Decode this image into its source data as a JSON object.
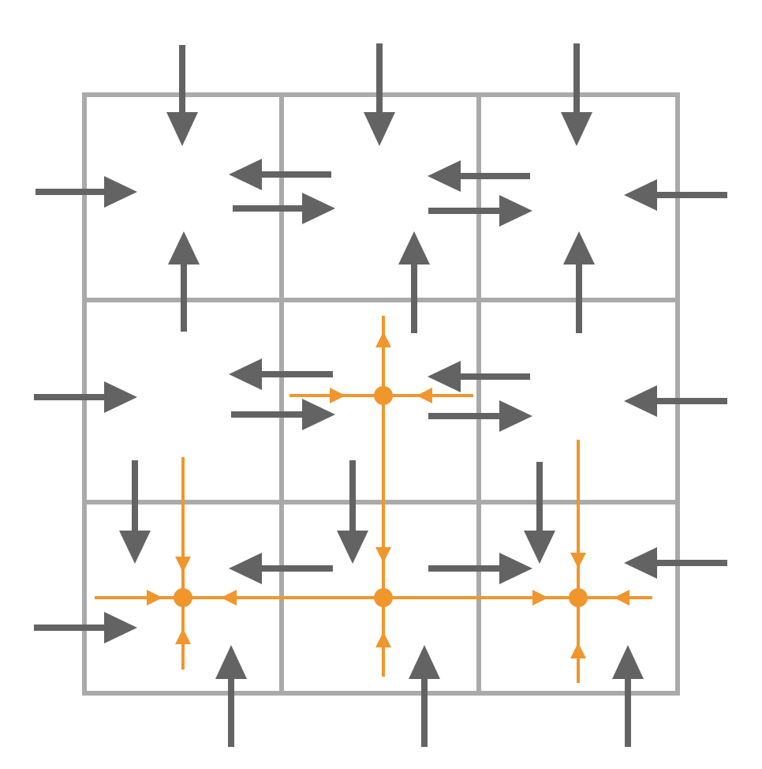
{
  "colors": {
    "background": "#ffffff",
    "grid": "#aaaaaa",
    "arrow": "#636363",
    "highlight": "#f0962c"
  },
  "grid": {
    "rows": 3,
    "cols": 3
  },
  "highlight": {
    "node_count": 4
  }
}
